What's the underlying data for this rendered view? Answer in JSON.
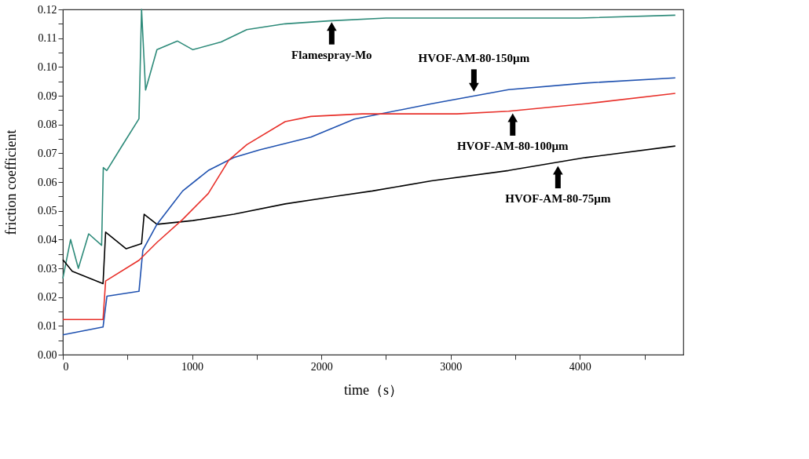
{
  "chart_data": {
    "type": "line",
    "xlabel": "time（s）",
    "ylabel": "friction coefficient",
    "xlim": [
      0,
      4800
    ],
    "xticks": [
      0,
      {
        "value": 500,
        "label": null
      },
      1000,
      {
        "value": 1500,
        "label": null
      },
      2000,
      {
        "value": 2500,
        "label": null
      },
      3000,
      {
        "value": 3500,
        "label": null
      },
      4000,
      {
        "value": 4500,
        "label": null
      }
    ],
    "ylim": [
      0,
      0.12
    ],
    "yticks": [
      {
        "value": 0,
        "label": "0.00"
      },
      {
        "value": 0.005,
        "label": null
      },
      {
        "value": 0.01,
        "label": "0.01"
      },
      {
        "value": 0.015,
        "label": null
      },
      {
        "value": 0.02,
        "label": "0.02"
      },
      {
        "value": 0.025,
        "label": null
      },
      {
        "value": 0.03,
        "label": "0.03"
      },
      {
        "value": 0.035,
        "label": null
      },
      {
        "value": 0.04,
        "label": "0.04"
      },
      {
        "value": 0.045,
        "label": null
      },
      {
        "value": 0.05,
        "label": "0.05"
      },
      {
        "value": 0.055,
        "label": null
      },
      {
        "value": 0.06,
        "label": "0.06"
      },
      {
        "value": 0.065,
        "label": null
      },
      {
        "value": 0.07,
        "label": "0.07"
      },
      {
        "value": 0.075,
        "label": null
      },
      {
        "value": 0.08,
        "label": "0.08"
      },
      {
        "value": 0.085,
        "label": null
      },
      {
        "value": 0.09,
        "label": "0.09"
      },
      {
        "value": 0.095,
        "label": null
      },
      {
        "value": 0.1,
        "label": "0.10"
      },
      {
        "value": 0.105,
        "label": null
      },
      {
        "value": 0.11,
        "label": "0.11"
      },
      {
        "value": 0.115,
        "label": null
      },
      {
        "value": 0.12,
        "label": "0.12"
      }
    ],
    "grid": false,
    "legend": false,
    "marker": "none",
    "line_style": "solid",
    "series": [
      {
        "color": "#2e8b7a",
        "x": [
          0,
          60,
          120,
          200,
          300,
          313,
          340,
          450,
          589,
          609,
          640,
          728,
          887,
          1006,
          1224,
          1423,
          1720,
          2058,
          2500,
          3000,
          3500,
          4000,
          4738
        ],
        "values": [
          0.0265,
          0.04,
          0.03,
          0.042,
          0.038,
          0.065,
          0.064,
          0.072,
          0.082,
          0.12,
          0.092,
          0.106,
          0.109,
          0.106,
          0.1087,
          0.113,
          0.115,
          0.116,
          0.117,
          0.117,
          0.117,
          0.117,
          0.118
        ]
      },
      {
        "color": "#000000",
        "x": [
          0,
          73,
          311,
          331,
          490,
          609,
          629,
          728,
          1006,
          1323,
          1720,
          2117,
          2395,
          2851,
          3448,
          4043,
          4738
        ],
        "values": [
          0.033,
          0.029,
          0.0247,
          0.0426,
          0.0368,
          0.0386,
          0.0488,
          0.0453,
          0.0466,
          0.0488,
          0.0524,
          0.0551,
          0.0569,
          0.0604,
          0.064,
          0.0685,
          0.0725
        ]
      },
      {
        "color": "#2052b0",
        "x": [
          0,
          311,
          341,
          589,
          619,
          728,
          927,
          1125,
          1323,
          1522,
          1919,
          2256,
          2851,
          3448,
          4043,
          4738
        ],
        "values": [
          0.0069,
          0.0096,
          0.0203,
          0.022,
          0.0363,
          0.0453,
          0.0569,
          0.064,
          0.0685,
          0.0712,
          0.0756,
          0.0819,
          0.0872,
          0.0921,
          0.0944,
          0.0962
        ]
      },
      {
        "color": "#e8302a",
        "x": [
          0,
          311,
          331,
          589,
          728,
          927,
          1125,
          1284,
          1423,
          1720,
          1919,
          2316,
          2653,
          3050,
          3448,
          4043,
          4738
        ],
        "values": [
          0.0122,
          0.0122,
          0.0256,
          0.0328,
          0.039,
          0.047,
          0.056,
          0.0676,
          0.073,
          0.081,
          0.0828,
          0.0837,
          0.0837,
          0.0837,
          0.0846,
          0.0872,
          0.0908
        ]
      }
    ],
    "annotations": [
      {
        "text": "Flamespray-Mo",
        "x": 2080,
        "y": 0.116
      },
      {
        "text": "HVOF-AM-80-150µm",
        "x": 3180,
        "y": 0.091
      },
      {
        "text": "HVOF-AM-80-100µm",
        "x": 3480,
        "y": 0.0843
      },
      {
        "text": "HVOF-AM-80-75µm",
        "x": 3830,
        "y": 0.066
      }
    ]
  }
}
